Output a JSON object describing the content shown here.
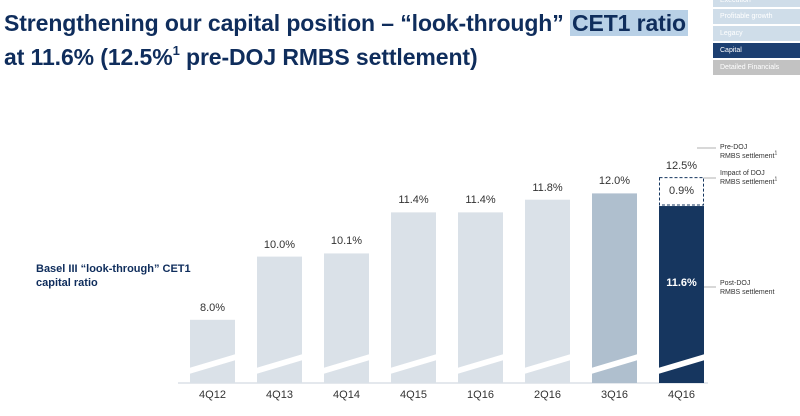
{
  "title": {
    "line1_a": "Strengthening our capital position – “look-through” ",
    "line1_highlight": "CET1 ratio",
    "line2_a": "at 11.6% (12.5%",
    "line2_sup": "1",
    "line2_b": " pre-DOJ RMBS settlement)"
  },
  "nav": {
    "items": [
      {
        "label": "Execution",
        "state": "partial"
      },
      {
        "label": "Profitable growth",
        "state": "normal"
      },
      {
        "label": "Legacy",
        "state": "normal"
      },
      {
        "label": "Capital",
        "state": "active"
      },
      {
        "label": "Detailed Financials",
        "state": "muted"
      }
    ]
  },
  "colors": {
    "bar_default": "#dae1e8",
    "bar_3q16": "#afbfce",
    "bar_4q16": "#16365f",
    "accent": "#0f2d5c"
  },
  "chart_data": {
    "type": "bar",
    "ylabel": "Basel III “look-through” CET1 capital ratio",
    "categories": [
      "4Q12",
      "4Q13",
      "4Q14",
      "4Q15",
      "1Q16",
      "2Q16",
      "3Q16",
      "4Q16"
    ],
    "values": [
      8.0,
      10.0,
      10.1,
      11.4,
      11.4,
      11.8,
      12.0,
      11.6
    ],
    "value_labels": [
      "8.0%",
      "10.0%",
      "10.1%",
      "11.4%",
      "11.4%",
      "11.8%",
      "12.0%",
      "11.6%"
    ],
    "stacked_on_last": {
      "value": 0.9,
      "value_label": "0.9%",
      "total": 12.5,
      "total_label": "12.5%",
      "style": "dashed-outline"
    },
    "axis_break": true,
    "annotations": {
      "pre_doj": {
        "text": "Pre-DOJ",
        "text2": "RMBS settlement",
        "sup": "1"
      },
      "impact": {
        "text": "Impact of DOJ",
        "text2": "RMBS settlement",
        "sup": "1"
      },
      "post_doj": {
        "text": "Post-DOJ",
        "text2": "RMBS settlement",
        "sup": ""
      }
    }
  }
}
